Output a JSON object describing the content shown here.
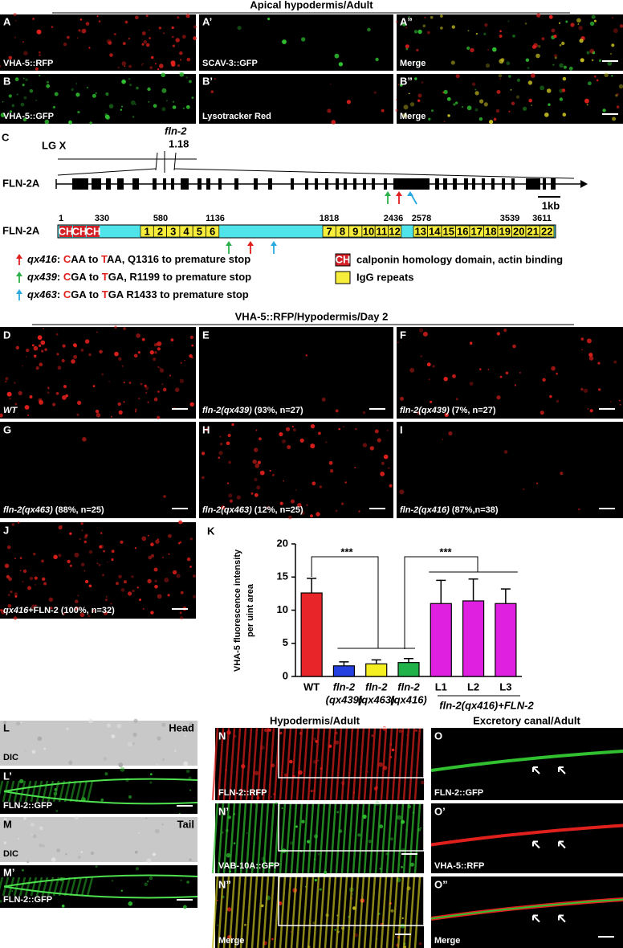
{
  "header": {
    "title": "Apical hypodermis/Adult"
  },
  "panels_top": [
    {
      "label": "A",
      "caption": "VHA-5::RFP"
    },
    {
      "label": "A’",
      "caption": "SCAV-3::GFP"
    },
    {
      "label": "A”",
      "caption": "Merge"
    },
    {
      "label": "B",
      "caption": "VHA-5::GFP"
    },
    {
      "label": "B’",
      "caption": "Lysotracker Red"
    },
    {
      "label": "B”",
      "caption": "Merge"
    }
  ],
  "panel_c": {
    "label": "C",
    "chromosome": "LG X",
    "gene": "fln-2",
    "position": "1.18",
    "gene_model": "FLN-2A",
    "scale": "1kb",
    "protein": "FLN-2A",
    "residues": [
      1,
      330,
      580,
      1136,
      1818,
      2436,
      2578,
      3539,
      3611
    ],
    "domain_tag": "CH",
    "repeats": [
      1,
      2,
      3,
      4,
      5,
      6,
      7,
      8,
      9,
      10,
      11,
      12,
      13,
      14,
      15,
      16,
      17,
      18,
      19,
      20,
      21,
      22
    ],
    "mutations": [
      {
        "allele": "qx416",
        "parts": [
          ": ",
          "C",
          "AA to ",
          "T",
          "AA, Q1316 to premature stop"
        ]
      },
      {
        "allele": "qx439",
        "parts": [
          ": ",
          "C",
          "GA to ",
          "T",
          "GA, R1199 to premature stop"
        ]
      },
      {
        "allele": "qx463",
        "parts": [
          ": ",
          "C",
          "GA to ",
          "T",
          "GA  R1433 to premature stop"
        ]
      }
    ],
    "legend": [
      "calponin homology domain, actin binding",
      "IgG repeats"
    ]
  },
  "section_title": "VHA-5::RFP/Hypodermis/Day 2",
  "panels_mid": [
    {
      "label": "D",
      "genotype": "WT"
    },
    {
      "label": "E",
      "genotype": "fln-2(qx439)",
      "note": " (93%, n=27)"
    },
    {
      "label": "F",
      "genotype": "fln-2(qx439)",
      "note": " (7%, n=27)"
    },
    {
      "label": "G",
      "genotype": "fln-2(qx463)",
      "note": " (88%, n=25)"
    },
    {
      "label": "H",
      "genotype": "fln-2(qx463)",
      "note": " (12%, n=25)"
    },
    {
      "label": "I",
      "genotype": "fln-2(qx416)",
      "note": " (87%,n=38)"
    },
    {
      "label": "J",
      "genotype": "qx416",
      "note": "+FLN-2 (100%, n=32)"
    }
  ],
  "chart_data": {
    "type": "bar",
    "label": "K",
    "y_label": [
      "VHA-5 fluorescence intensity",
      "per uint area"
    ],
    "categories": [
      "WT",
      "fln-2",
      "fln-2",
      "fln-2",
      "L1",
      "L2",
      "L3"
    ],
    "category_sublabels": [
      null,
      "(qx439)",
      "(qx463)",
      "(qx416)",
      null,
      null,
      null
    ],
    "group_label": "fln-2(qx416)+FLN-2",
    "values": [
      12.6,
      1.6,
      1.9,
      2.1,
      11.0,
      11.4,
      11.0
    ],
    "errors": [
      2.2,
      0.6,
      0.6,
      0.6,
      3.5,
      3.3,
      2.2
    ],
    "colors": [
      "#e8262a",
      "#2440e0",
      "#f5ee20",
      "#22b24a",
      "#e020e0",
      "#e020e0",
      "#e020e0"
    ],
    "significance": [
      "***",
      "***"
    ],
    "ylim": [
      0,
      20
    ],
    "yticks": [
      0,
      5,
      10,
      15,
      20
    ]
  },
  "panels_bottom": {
    "left": [
      {
        "label": "L",
        "caption": "DIC",
        "corner": "Head"
      },
      {
        "label": "L’",
        "caption": "FLN-2::GFP"
      },
      {
        "label": "M",
        "caption": "DIC",
        "corner": "Tail"
      },
      {
        "label": "M’",
        "caption": "FLN-2::GFP"
      }
    ],
    "middle_title": "Hypodermis/Adult",
    "middle": [
      {
        "label": "N",
        "caption": "FLN-2::RFP"
      },
      {
        "label": "N’",
        "caption": "VAB-10A::GFP"
      },
      {
        "label": "N”",
        "caption": "Merge"
      }
    ],
    "right_title": "Excretory canal/Adult",
    "right": [
      {
        "label": "O",
        "caption": "FLN-2::GFP"
      },
      {
        "label": "O’",
        "caption": "VHA-5::RFP"
      },
      {
        "label": "O”",
        "caption": "Merge"
      }
    ]
  }
}
